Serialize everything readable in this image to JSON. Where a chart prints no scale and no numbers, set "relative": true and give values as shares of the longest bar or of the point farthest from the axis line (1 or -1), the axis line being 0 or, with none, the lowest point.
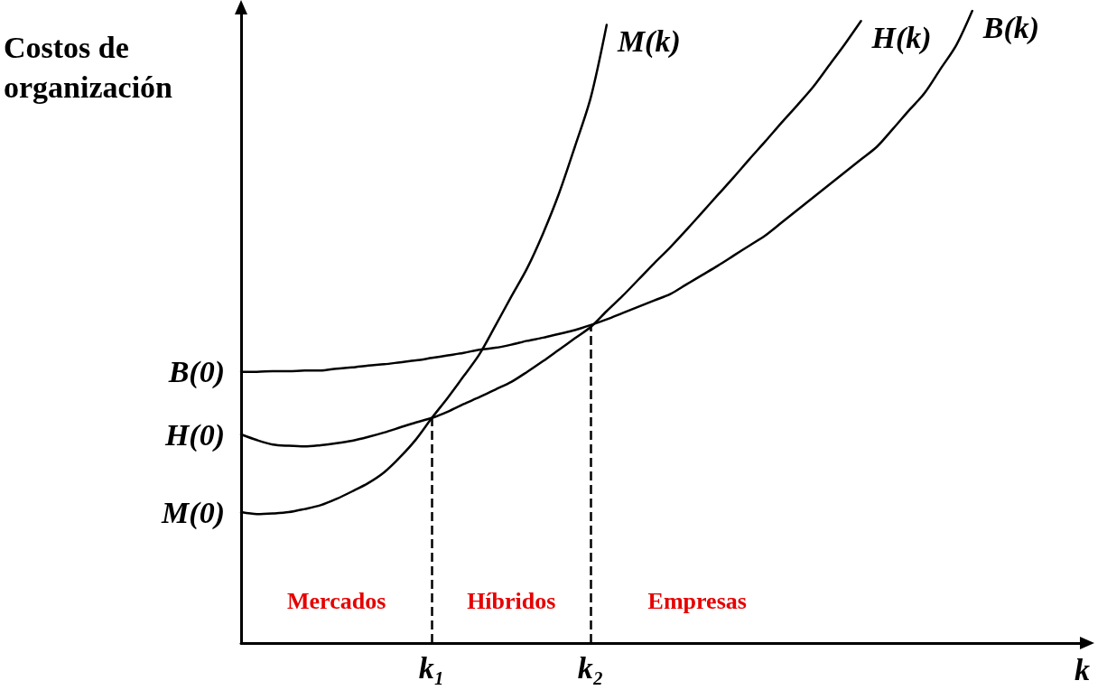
{
  "chart_data": {
    "type": "line",
    "relative": true,
    "xlabel": "k",
    "ylabel": "Costos de organización",
    "categories": [
      null,
      null,
      null,
      null,
      null,
      null,
      null,
      null,
      null,
      null,
      null,
      null,
      "k₁",
      null,
      null,
      null,
      null,
      null,
      null,
      null,
      null,
      null,
      "k₂",
      null,
      null,
      null,
      null,
      null,
      null,
      null,
      null,
      null,
      null,
      null,
      null,
      null,
      null,
      null,
      null,
      null,
      null,
      null,
      null,
      null,
      null,
      null,
      null,
      null,
      null,
      null,
      null,
      null,
      null,
      null
    ],
    "series": [
      {
        "name": "M(k)",
        "color": "#000000",
        "values": [
          0.207,
          0.204,
          0.205,
          0.207,
          0.212,
          0.218,
          0.228,
          0.24,
          0.253,
          0.27,
          0.294,
          0.322,
          0.356,
          0.388,
          0.422,
          0.457,
          0.502,
          0.548,
          0.593,
          0.648,
          0.711,
          0.785,
          0.863,
          0.978,
          null,
          null,
          null,
          null,
          null,
          null,
          null,
          null,
          null,
          null,
          null,
          null,
          null,
          null,
          null,
          null,
          null,
          null,
          null,
          null,
          null,
          null,
          null,
          null,
          null,
          null,
          null,
          null,
          null,
          null
        ]
      },
      {
        "name": "H(k)",
        "color": "#000000",
        "values": [
          0.33,
          0.321,
          0.314,
          0.312,
          0.311,
          0.313,
          0.316,
          0.32,
          0.326,
          0.333,
          0.341,
          0.349,
          0.356,
          0.366,
          0.378,
          0.389,
          0.401,
          0.413,
          0.429,
          0.446,
          0.464,
          0.482,
          0.5,
          0.525,
          0.549,
          0.575,
          0.601,
          0.626,
          0.653,
          0.681,
          0.709,
          0.737,
          0.766,
          0.794,
          0.823,
          0.851,
          0.88,
          0.914,
          0.948,
          0.984,
          null,
          null,
          null,
          null,
          null,
          null,
          null,
          null,
          null,
          null,
          null,
          null,
          null,
          null
        ]
      },
      {
        "name": "B(k)",
        "color": "#000000",
        "values": [
          0.429,
          0.429,
          0.43,
          0.43,
          0.431,
          0.431,
          0.434,
          0.436,
          0.439,
          0.441,
          0.444,
          0.447,
          0.451,
          0.455,
          0.459,
          0.464,
          0.467,
          0.472,
          0.478,
          0.483,
          0.489,
          0.495,
          0.503,
          0.512,
          0.522,
          0.532,
          0.542,
          0.552,
          0.567,
          0.582,
          0.597,
          0.613,
          0.629,
          0.645,
          0.665,
          0.685,
          0.705,
          0.725,
          0.745,
          0.765,
          0.785,
          0.813,
          0.842,
          0.87,
          0.908,
          0.946,
          1,
          null,
          null,
          null,
          null,
          null,
          null,
          null
        ]
      }
    ],
    "ref_lines": [
      {
        "axis": "x",
        "value": "k₁",
        "line_style": "dashed"
      },
      {
        "axis": "x",
        "value": "k₂",
        "line_style": "dashed"
      }
    ],
    "annotations": [
      "M(0)",
      "H(0)",
      "B(0)",
      "Mercados",
      "Híbridos",
      "Empresas"
    ],
    "grid": false,
    "legend": false,
    "marker": "none",
    "line_style": "solid"
  }
}
